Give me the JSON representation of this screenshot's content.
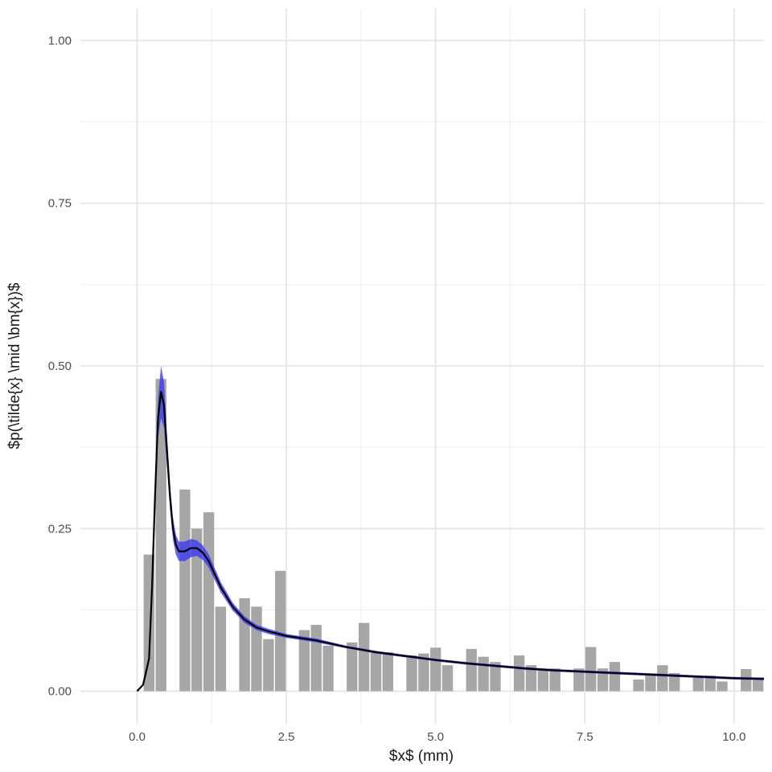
{
  "chart_data": {
    "type": "bar",
    "xlabel": "$x$ (mm)",
    "ylabel": "$p(\\tilde{x} \\mid \\bm{x})$",
    "xlim": [
      -0.95,
      10.5
    ],
    "ylim": [
      -0.05,
      1.05
    ],
    "x_ticks": [
      0.0,
      2.5,
      5.0,
      7.5,
      10.0
    ],
    "x_tick_labels": [
      "0.0",
      "2.5",
      "5.0",
      "7.5",
      "10.0"
    ],
    "y_ticks": [
      0.0,
      0.25,
      0.5,
      0.75,
      1.0
    ],
    "y_tick_labels": [
      "0.00",
      "0.25",
      "0.50",
      "0.75",
      "1.00"
    ],
    "grid": true,
    "bar_width": 0.2,
    "histogram": {
      "x": [
        0.2,
        0.4,
        0.8,
        1.0,
        1.2,
        1.4,
        1.8,
        2.0,
        2.2,
        2.4,
        2.8,
        3.0,
        3.2,
        3.6,
        3.8,
        4.0,
        4.2,
        4.6,
        4.8,
        5.0,
        5.2,
        5.6,
        5.8,
        6.0,
        6.4,
        6.6,
        6.8,
        7.0,
        7.4,
        7.6,
        7.8,
        8.0,
        8.4,
        8.6,
        8.8,
        9.0,
        9.4,
        9.6,
        9.8,
        10.2,
        10.4
      ],
      "values": [
        0.21,
        0.48,
        0.31,
        0.25,
        0.275,
        0.13,
        0.143,
        0.13,
        0.08,
        0.185,
        0.094,
        0.102,
        0.07,
        0.075,
        0.105,
        0.06,
        0.06,
        0.055,
        0.058,
        0.067,
        0.04,
        0.065,
        0.053,
        0.045,
        0.055,
        0.04,
        0.032,
        0.035,
        0.035,
        0.068,
        0.035,
        0.045,
        0.018,
        0.025,
        0.04,
        0.028,
        0.022,
        0.024,
        0.015,
        0.034,
        0.02
      ],
      "color": "#a6a6a6"
    },
    "density": {
      "x": [
        0.0,
        0.1,
        0.2,
        0.25,
        0.3,
        0.35,
        0.4,
        0.45,
        0.5,
        0.55,
        0.6,
        0.65,
        0.7,
        0.8,
        0.9,
        1.0,
        1.1,
        1.2,
        1.3,
        1.4,
        1.5,
        1.6,
        1.8,
        2.0,
        2.2,
        2.5,
        3.0,
        3.5,
        4.0,
        4.5,
        5.0,
        5.5,
        6.0,
        6.5,
        7.0,
        7.5,
        8.0,
        8.5,
        9.0,
        9.5,
        10.0,
        10.5
      ],
      "mean": [
        0.0,
        0.01,
        0.05,
        0.16,
        0.3,
        0.42,
        0.46,
        0.44,
        0.37,
        0.3,
        0.25,
        0.225,
        0.215,
        0.215,
        0.22,
        0.22,
        0.213,
        0.2,
        0.18,
        0.16,
        0.145,
        0.13,
        0.11,
        0.098,
        0.092,
        0.085,
        0.078,
        0.068,
        0.06,
        0.054,
        0.048,
        0.043,
        0.039,
        0.035,
        0.032,
        0.03,
        0.028,
        0.026,
        0.024,
        0.022,
        0.02,
        0.019
      ],
      "lower": [
        0.0,
        0.009,
        0.045,
        0.145,
        0.28,
        0.39,
        0.42,
        0.405,
        0.345,
        0.28,
        0.233,
        0.21,
        0.2,
        0.2,
        0.206,
        0.208,
        0.202,
        0.19,
        0.171,
        0.152,
        0.138,
        0.124,
        0.105,
        0.094,
        0.088,
        0.082,
        0.075,
        0.066,
        0.058,
        0.052,
        0.046,
        0.041,
        0.037,
        0.033,
        0.03,
        0.028,
        0.026,
        0.024,
        0.022,
        0.02,
        0.018,
        0.017
      ],
      "upper": [
        0.0,
        0.011,
        0.055,
        0.175,
        0.32,
        0.45,
        0.5,
        0.475,
        0.395,
        0.32,
        0.267,
        0.24,
        0.23,
        0.23,
        0.234,
        0.232,
        0.224,
        0.21,
        0.189,
        0.168,
        0.152,
        0.136,
        0.115,
        0.102,
        0.096,
        0.088,
        0.081,
        0.07,
        0.062,
        0.056,
        0.05,
        0.045,
        0.041,
        0.037,
        0.034,
        0.032,
        0.03,
        0.028,
        0.026,
        0.024,
        0.022,
        0.021
      ],
      "line_color": "#000000",
      "band_color": "#3a3af0"
    }
  }
}
